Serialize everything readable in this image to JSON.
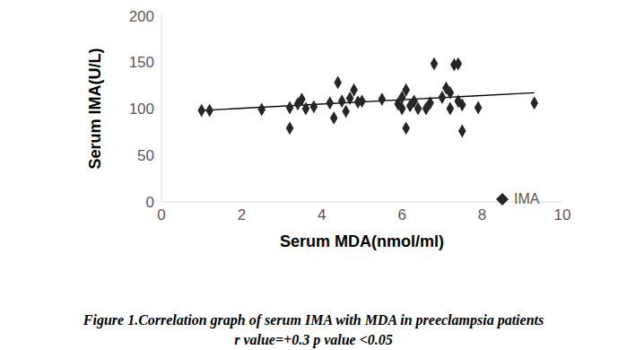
{
  "chart_data": {
    "type": "scatter",
    "caption": [
      "Figure 1.Correlation graph of serum IMA with MDA in preeclampsia patients",
      "r value=+0.3 p value <0.05"
    ],
    "x_label": "Serum MDA(nmol/ml)",
    "y_label": "Serum IMA(U/L)",
    "xlim": [
      0,
      10
    ],
    "xticks": [
      0,
      2,
      4,
      6,
      8,
      10
    ],
    "ylim": [
      0,
      200
    ],
    "yticks": [
      0,
      50,
      100,
      150,
      200
    ],
    "grid": false,
    "legend": "bottom-right",
    "series": [
      {
        "name": "IMA",
        "color": "#262626",
        "marker": "diamond",
        "x": [
          1.0,
          1.2,
          2.5,
          3.2,
          3.2,
          3.4,
          3.5,
          3.6,
          3.8,
          4.2,
          4.3,
          4.4,
          4.5,
          4.6,
          4.7,
          4.8,
          4.9,
          5.0,
          5.5,
          5.9,
          6.0,
          6.0,
          6.1,
          6.1,
          6.2,
          6.3,
          6.4,
          6.6,
          6.7,
          6.8,
          7.0,
          7.1,
          7.2,
          7.2,
          7.3,
          7.4,
          7.4,
          7.5,
          7.5,
          7.9,
          9.3
        ],
        "values": [
          98,
          98,
          99,
          101,
          79,
          105,
          110,
          100,
          102,
          106,
          90,
          128,
          108,
          97,
          111,
          120,
          107,
          108,
          110,
          105,
          112,
          100,
          120,
          79,
          103,
          108,
          100,
          100,
          106,
          148,
          112,
          122,
          100,
          117,
          147,
          148,
          108,
          76,
          104,
          101,
          106
        ]
      }
    ],
    "trendline": {
      "x": [
        1.0,
        9.3
      ],
      "values": [
        98,
        117
      ],
      "color": "#000000"
    }
  }
}
